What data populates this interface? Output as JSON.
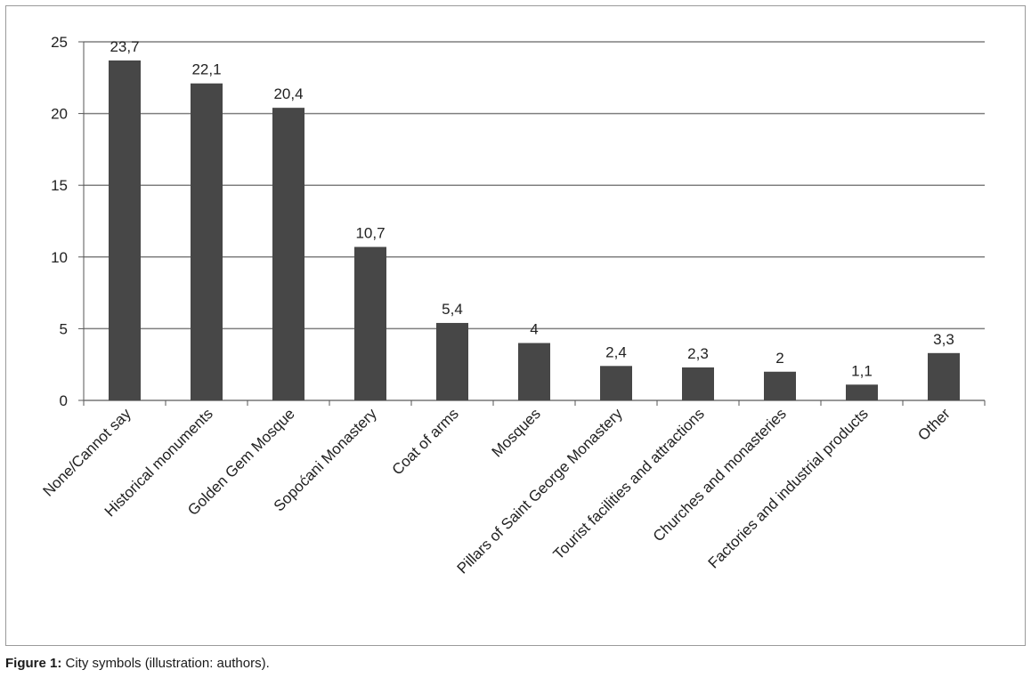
{
  "chart_data": {
    "type": "bar",
    "categories": [
      "None/Cannot say",
      "Historical monuments",
      "Golden Gem Mosque",
      "Sopoćani Monastery",
      "Coat of arms",
      "Mosques",
      "Pillars of Saint George Monastery",
      "Tourist facilities and attractions",
      "Churches and monasteries",
      "Factories and industrial products",
      "Other"
    ],
    "values": [
      23.7,
      22.1,
      20.4,
      10.7,
      5.4,
      4,
      2.4,
      2.3,
      2,
      1.1,
      3.3
    ],
    "value_labels": [
      "23,7",
      "22,1",
      "20,4",
      "10,7",
      "5,4",
      "4",
      "2,4",
      "2,3",
      "2",
      "1,1",
      "3,3"
    ],
    "ylim": [
      0,
      25
    ],
    "yticks": [
      0,
      5,
      10,
      15,
      20,
      25
    ],
    "ytick_labels": [
      "0",
      "5",
      "10",
      "15",
      "20",
      "25"
    ],
    "grid": true,
    "bar_color": "#474747",
    "grid_color": "#7f7f7f"
  },
  "caption": {
    "label": "Figure 1:",
    "text": " City symbols (illustration: authors)."
  }
}
